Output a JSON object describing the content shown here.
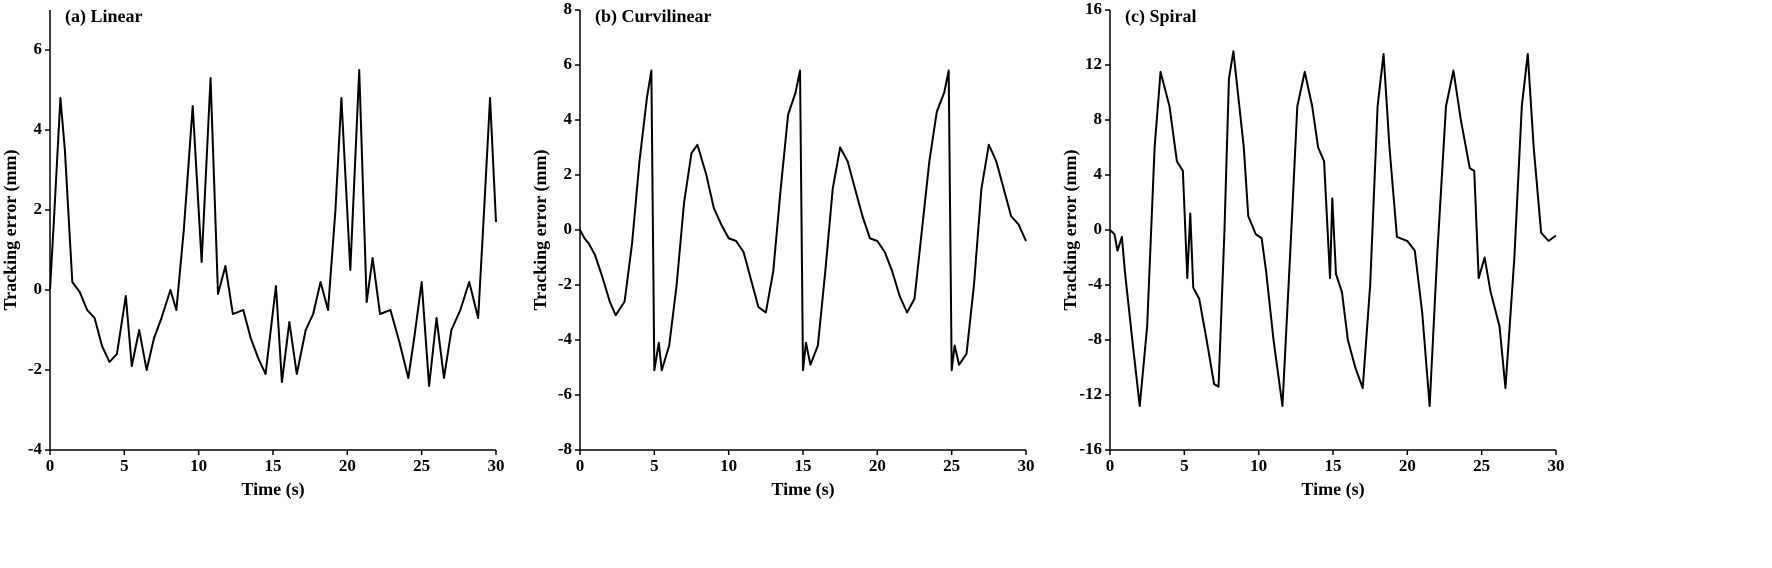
{
  "chart_data": [
    {
      "type": "line",
      "title": "(a) Linear",
      "x_label": "Time (s)",
      "y_label": "Tracking error (mm)",
      "xlim": [
        0,
        30
      ],
      "xticks": [
        0,
        5,
        10,
        15,
        20,
        25,
        30
      ],
      "ylim": [
        -4,
        7
      ],
      "yticks": [
        -4,
        -2,
        0,
        2,
        4,
        6
      ],
      "x": [
        0,
        0.3,
        0.7,
        1.0,
        1.5,
        2,
        2.5,
        3,
        3.5,
        4,
        4.5,
        5.1,
        5.5,
        6,
        6.5,
        7,
        7.5,
        8.1,
        8.5,
        9,
        9.6,
        10.2,
        10.8,
        11.3,
        11.8,
        12.3,
        13,
        13.5,
        14,
        14.5,
        15.2,
        15.6,
        16.1,
        16.6,
        17.2,
        17.7,
        18.2,
        18.7,
        19.2,
        19.6,
        20.2,
        20.8,
        21.3,
        21.7,
        22.2,
        22.9,
        23.5,
        24.1,
        24.5,
        25,
        25.5,
        26,
        26.5,
        27,
        27.6,
        28.2,
        28.8,
        29.2,
        29.6,
        30
      ],
      "series": [
        {
          "color": "#000000",
          "values": [
            0,
            2,
            4.8,
            3.5,
            0.2,
            -0.05,
            -0.5,
            -0.7,
            -1.4,
            -1.8,
            -1.6,
            -0.15,
            -1.9,
            -1.0,
            -2.0,
            -1.2,
            -0.7,
            0.0,
            -0.5,
            1.5,
            4.6,
            0.7,
            5.3,
            -0.1,
            0.6,
            -0.6,
            -0.5,
            -1.2,
            -1.7,
            -2.1,
            0.1,
            -2.3,
            -0.8,
            -2.1,
            -1.0,
            -0.6,
            0.2,
            -0.5,
            2.0,
            4.8,
            0.5,
            5.5,
            -0.3,
            0.8,
            -0.6,
            -0.5,
            -1.3,
            -2.2,
            -1.2,
            0.2,
            -2.4,
            -0.7,
            -2.2,
            -1.0,
            -0.5,
            0.2,
            -0.7,
            2.0,
            4.8,
            1.7
          ]
        }
      ]
    },
    {
      "type": "line",
      "title": "(b) Curvilinear",
      "x_label": "Time (s)",
      "y_label": "Tracking error (mm)",
      "xlim": [
        0,
        30
      ],
      "xticks": [
        0,
        5,
        10,
        15,
        20,
        25,
        30
      ],
      "ylim": [
        -8,
        8
      ],
      "yticks": [
        -8,
        -6,
        -4,
        -2,
        0,
        2,
        4,
        6,
        8
      ],
      "x": [
        0,
        0.3,
        0.6,
        1,
        1.5,
        2,
        2.4,
        3,
        3.5,
        4,
        4.5,
        4.8,
        5.0,
        5.3,
        5.5,
        6,
        6.5,
        7,
        7.5,
        7.9,
        8.5,
        9,
        9.5,
        10,
        10.5,
        11,
        11.5,
        12,
        12.5,
        13,
        13.5,
        14,
        14.5,
        14.8,
        15.0,
        15.2,
        15.5,
        16,
        16.5,
        17,
        17.5,
        18,
        18.5,
        19,
        19.5,
        20,
        20.5,
        21,
        21.5,
        22,
        22.5,
        23,
        23.5,
        24,
        24.5,
        24.8,
        25.0,
        25.2,
        25.5,
        26,
        26.5,
        27,
        27.5,
        28,
        28.5,
        29,
        29.5,
        30
      ],
      "series": [
        {
          "color": "#000000",
          "values": [
            0,
            -0.3,
            -0.5,
            -0.9,
            -1.7,
            -2.6,
            -3.1,
            -2.6,
            -0.5,
            2.5,
            4.8,
            5.8,
            -5.1,
            -4.1,
            -5.1,
            -4.2,
            -2.0,
            1.0,
            2.8,
            3.1,
            2.0,
            0.8,
            0.2,
            -0.3,
            -0.4,
            -0.8,
            -1.8,
            -2.8,
            -3.0,
            -1.5,
            1.5,
            4.2,
            5.0,
            5.8,
            -5.1,
            -4.1,
            -4.9,
            -4.2,
            -1.5,
            1.5,
            3.0,
            2.5,
            1.5,
            0.5,
            -0.3,
            -0.4,
            -0.8,
            -1.5,
            -2.4,
            -3.0,
            -2.5,
            0,
            2.5,
            4.3,
            5.0,
            5.8,
            -5.1,
            -4.2,
            -4.9,
            -4.5,
            -2.0,
            1.5,
            3.1,
            2.5,
            1.5,
            0.5,
            0.2,
            -0.4
          ]
        }
      ]
    },
    {
      "type": "line",
      "title": "(c) Spiral",
      "x_label": "Time (s)",
      "y_label": "Tracking error (mm)",
      "xlim": [
        0,
        30
      ],
      "xticks": [
        0,
        5,
        10,
        15,
        20,
        25,
        30
      ],
      "ylim": [
        -16,
        16
      ],
      "yticks": [
        -16,
        -12,
        -8,
        -4,
        0,
        4,
        8,
        12,
        16
      ],
      "x": [
        0,
        0.3,
        0.5,
        0.8,
        1,
        1.5,
        2,
        2.5,
        3,
        3.4,
        4,
        4.5,
        4.9,
        5.2,
        5.4,
        5.6,
        6,
        6.5,
        7,
        7.3,
        7.7,
        8.0,
        8.3,
        8.7,
        9,
        9.3,
        9.5,
        9.8,
        10.2,
        10.5,
        11,
        11.6,
        12.2,
        12.6,
        13.1,
        13.6,
        14,
        14.4,
        14.8,
        14.95,
        15.2,
        15.6,
        16,
        16.5,
        17,
        17.5,
        18,
        18.4,
        18.8,
        19.3,
        20,
        20.5,
        21,
        21.5,
        22,
        22.6,
        23.1,
        23.6,
        24.2,
        24.5,
        24.8,
        25.2,
        25.6,
        26.2,
        26.6,
        27.2,
        27.7,
        28.1,
        28.5,
        29,
        29.5,
        30
      ],
      "series": [
        {
          "color": "#000000",
          "values": [
            0,
            -0.3,
            -1.5,
            -0.5,
            -3,
            -8,
            -12.8,
            -7,
            6,
            11.5,
            9,
            5,
            4.3,
            -3.5,
            1.2,
            -4.2,
            -5,
            -8,
            -11.2,
            -11.4,
            0,
            11,
            13,
            9,
            6,
            1,
            0.5,
            -0.3,
            -0.6,
            -3,
            -8,
            -12.8,
            0,
            9,
            11.5,
            9,
            6,
            5,
            -3.5,
            2.3,
            -3.2,
            -4.5,
            -8,
            -10,
            -11.5,
            -4,
            9,
            12.8,
            6,
            -0.5,
            -0.8,
            -1.5,
            -6,
            -12.8,
            -2,
            9,
            11.6,
            8,
            4.5,
            4.3,
            -3.5,
            -2,
            -4.5,
            -7,
            -11.5,
            -2,
            9,
            12.8,
            6,
            -0.2,
            -0.8,
            -0.4
          ]
        }
      ]
    }
  ]
}
